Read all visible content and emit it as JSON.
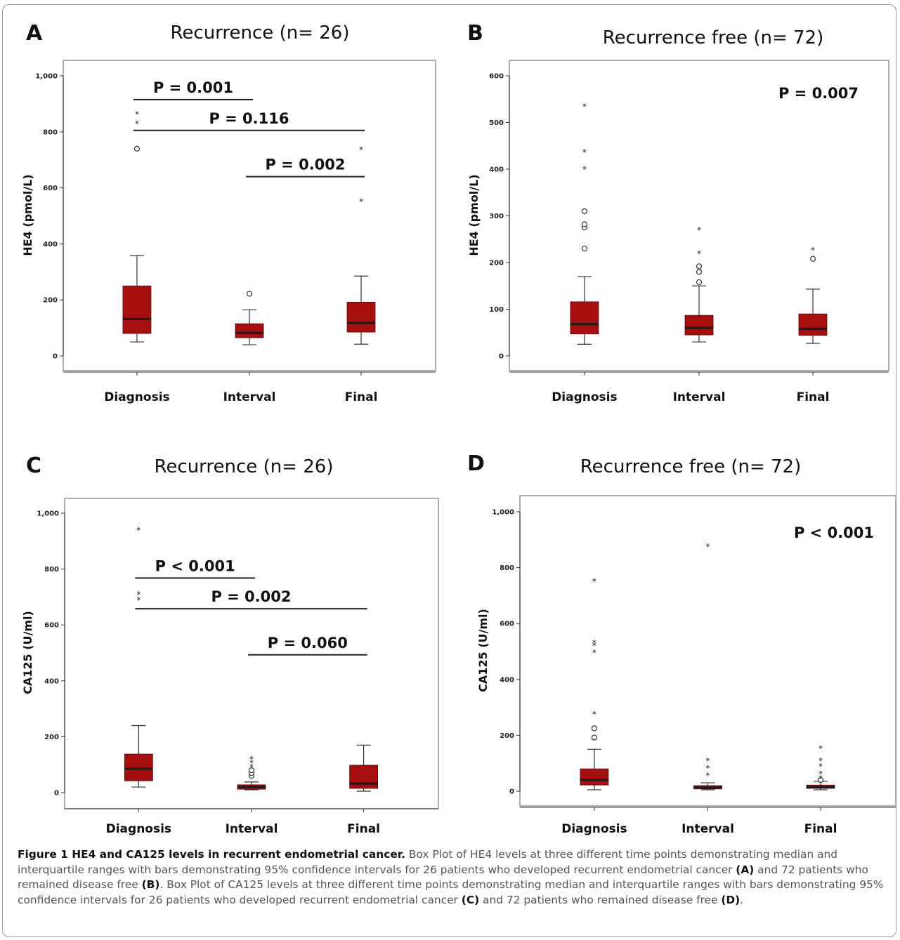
{
  "figure": {
    "caption": {
      "label": "Figure 1 HE4 and CA125 levels in recurrent endometrial cancer.",
      "text_1": " Box Plot of HE4 levels at three different time points demonstrating median and interquartile ranges with bars demonstrating 95% confidence intervals for 26 patients who developed recurrent endometrial cancer ",
      "ref_a": "(A)",
      "text_2": " and 72 patients who remained disease free ",
      "ref_b": "(B)",
      "text_3": ". Box Plot of CA125 levels at three different time points demonstrating median and interquartile ranges with bars demonstrating 95% confidence intervals for 26 patients who developed recurrent endometrial cancer ",
      "ref_c": "(C)",
      "text_4": " and 72 patients who remained disease free ",
      "ref_d": "(D)",
      "text_5": "."
    }
  },
  "colors": {
    "box_fill": "#a50f0f",
    "median": "#1a1a1a",
    "line": "#333333",
    "frame": "#9a9a9a"
  },
  "chart_data": [
    {
      "panel": "A",
      "type": "box",
      "title": "Recurrence (n= 26)",
      "ylabel": "HE4 (pmol/L)",
      "ylim": [
        0,
        1000
      ],
      "yticks": [
        0,
        200,
        400,
        600,
        800,
        1000
      ],
      "ytick_labels": [
        "0",
        "200",
        "400",
        "600",
        "800",
        "1,000"
      ],
      "categories": [
        "Diagnosis",
        "Interval",
        "Final"
      ],
      "boxes": [
        {
          "min": 50,
          "q1": 80,
          "median": 132,
          "q3": 250,
          "max": 358,
          "outliers": [
            740
          ],
          "extremes": [
            838,
            872
          ]
        },
        {
          "min": 40,
          "q1": 65,
          "median": 82,
          "q3": 115,
          "max": 165,
          "outliers": [
            222
          ],
          "extremes": []
        },
        {
          "min": 42,
          "q1": 85,
          "median": 118,
          "q3": 192,
          "max": 285,
          "outliers": [],
          "extremes": [
            560,
            745
          ]
        }
      ],
      "comparisons": [
        {
          "from": 0,
          "to": 1,
          "y": 915,
          "label": "P = 0.001"
        },
        {
          "from": 0,
          "to": 2,
          "y": 805,
          "label": "P = 0.116"
        },
        {
          "from": 1,
          "to": 2,
          "y": 640,
          "label": "P = 0.002"
        }
      ]
    },
    {
      "panel": "B",
      "type": "box",
      "title": "Recurrence free (n= 72)",
      "ylabel": "HE4 (pmol/L)",
      "ylim": [
        0,
        600
      ],
      "yticks": [
        0,
        100,
        200,
        300,
        400,
        500,
        600
      ],
      "ytick_labels": [
        "0",
        "100",
        "200",
        "300",
        "400",
        "500",
        "600"
      ],
      "categories": [
        "Diagnosis",
        "Interval",
        "Final"
      ],
      "boxes": [
        {
          "min": 25,
          "q1": 47,
          "median": 68,
          "q3": 116,
          "max": 170,
          "outliers": [
            230,
            275,
            282,
            310
          ],
          "extremes": [
            405,
            442,
            540
          ]
        },
        {
          "min": 30,
          "q1": 45,
          "median": 60,
          "q3": 87,
          "max": 150,
          "outliers": [
            158,
            180,
            192
          ],
          "extremes": [
            225,
            275
          ]
        },
        {
          "min": 27,
          "q1": 44,
          "median": 58,
          "q3": 90,
          "max": 143,
          "outliers": [
            208
          ],
          "extremes": [
            232
          ]
        }
      ],
      "annotation": "P = 0.007"
    },
    {
      "panel": "C",
      "type": "box",
      "title": "Recurrence (n= 26)",
      "ylabel": "CA125 (U/ml)",
      "ylim": [
        0,
        1000
      ],
      "yticks": [
        0,
        200,
        400,
        600,
        800,
        1000
      ],
      "ytick_labels": [
        "0",
        "200",
        "400",
        "600",
        "800",
        "1,000"
      ],
      "categories": [
        "Diagnosis",
        "Interval",
        "Final"
      ],
      "boxes": [
        {
          "min": 20,
          "q1": 42,
          "median": 85,
          "q3": 138,
          "max": 240,
          "outliers": [],
          "extremes": [
            698,
            718,
            948
          ]
        },
        {
          "min": 10,
          "q1": 12,
          "median": 20,
          "q3": 28,
          "max": 38,
          "outliers": [
            60,
            70,
            80
          ],
          "extremes": [
            100,
            115,
            130
          ]
        },
        {
          "min": 5,
          "q1": 15,
          "median": 32,
          "q3": 98,
          "max": 170,
          "outliers": [],
          "extremes": []
        }
      ],
      "comparisons": [
        {
          "from": 0,
          "to": 1,
          "y": 768,
          "label": "P < 0.001"
        },
        {
          "from": 0,
          "to": 2,
          "y": 658,
          "label": "P = 0.002"
        },
        {
          "from": 1,
          "to": 2,
          "y": 493,
          "label": "P = 0.060"
        }
      ]
    },
    {
      "panel": "D",
      "type": "box",
      "title": "Recurrence free (n= 72)",
      "ylabel": "CA125 (U/ml)",
      "ylim": [
        0,
        1000
      ],
      "yticks": [
        0,
        200,
        400,
        600,
        800,
        1000
      ],
      "ytick_labels": [
        "0",
        "200",
        "400",
        "600",
        "800",
        "1,000"
      ],
      "categories": [
        "Diagnosis",
        "Interval",
        "Final"
      ],
      "boxes": [
        {
          "min": 5,
          "q1": 22,
          "median": 40,
          "q3": 80,
          "max": 150,
          "outliers": [
            192,
            225
          ],
          "extremes": [
            285,
            505,
            530,
            540,
            760
          ]
        },
        {
          "min": 5,
          "q1": 8,
          "median": 13,
          "q3": 20,
          "max": 30,
          "outliers": [],
          "extremes": [
            65,
            92,
            118,
            885
          ]
        },
        {
          "min": 5,
          "q1": 10,
          "median": 15,
          "q3": 22,
          "max": 35,
          "outliers": [
            40
          ],
          "extremes": [
            55,
            72,
            98,
            118,
            162
          ]
        }
      ],
      "annotation": "P < 0.001"
    }
  ]
}
